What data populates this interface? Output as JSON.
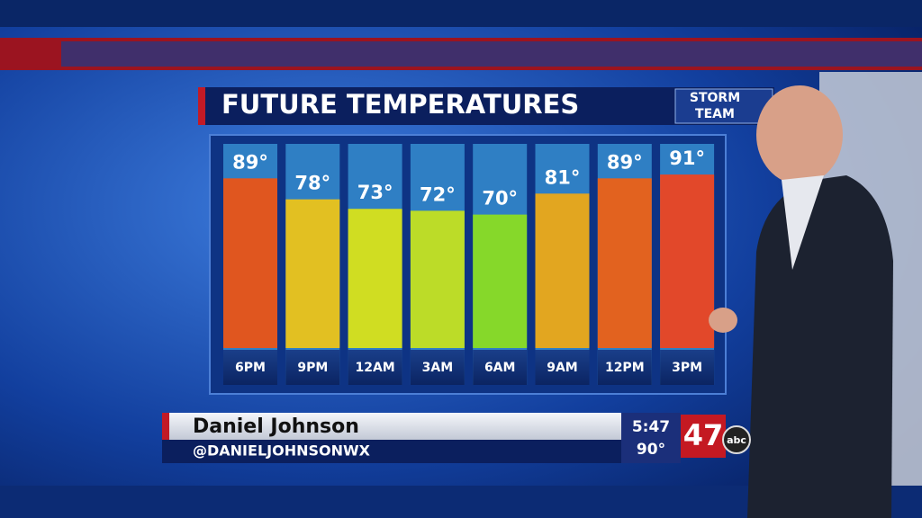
{
  "chart_data": {
    "type": "bar",
    "title": "FUTURE TEMPERATURES",
    "categories": [
      "6PM",
      "9PM",
      "12AM",
      "3AM",
      "6AM",
      "9AM",
      "12PM",
      "3PM"
    ],
    "values": [
      89,
      78,
      73,
      72,
      70,
      81,
      89,
      91
    ],
    "value_labels": [
      "89°",
      "78°",
      "73°",
      "72°",
      "70°",
      "81°",
      "89°",
      "91°"
    ],
    "colors": [
      "#e0561f",
      "#e2c022",
      "#d0dd22",
      "#bcdc28",
      "#86d82a",
      "#e2a620",
      "#e2621f",
      "#e2482a"
    ]
  },
  "logo": {
    "line1": "STORM",
    "line2": "TEAM"
  },
  "lower_third": {
    "name": "Daniel Johnson",
    "handle": "@DANIELJOHNSONWX",
    "time": "5:47",
    "temperature": "90°",
    "channel": "47",
    "network": "abc"
  }
}
